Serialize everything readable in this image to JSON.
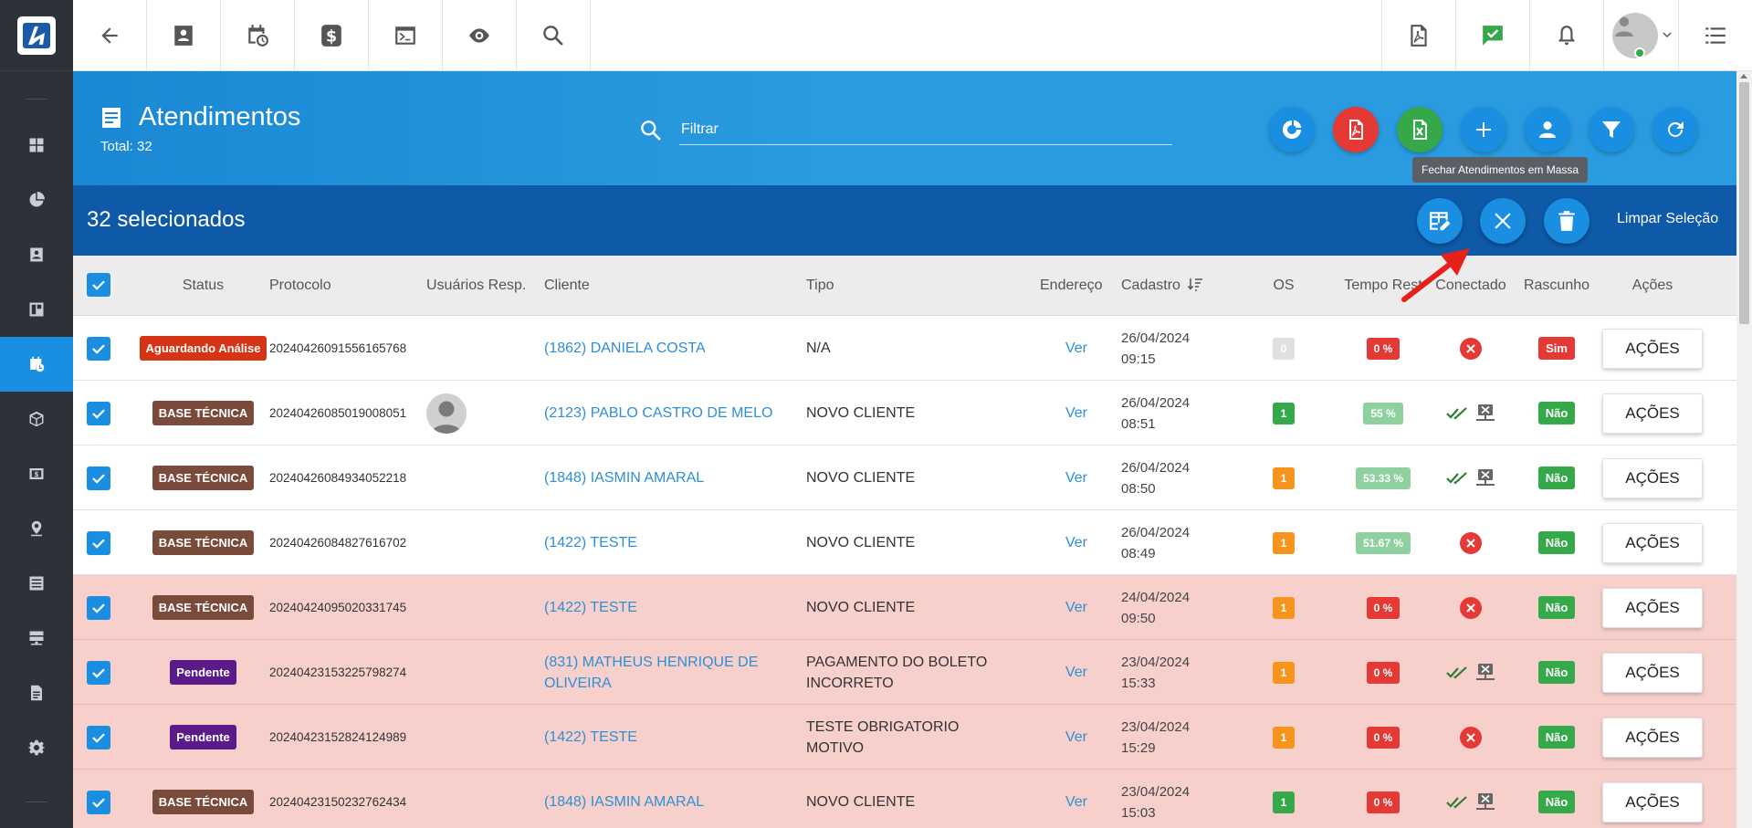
{
  "colors": {
    "primary": "#1a8ee0",
    "sidebar": "#2d3239",
    "selection_bar": "#0e5aa8",
    "row_highlight": "#f7d0cc",
    "status_aguardando": "#d63515",
    "status_base_tecnica": "#7a4a3a",
    "status_pendente": "#5a1a8a",
    "os_gray": "#e0e0e0",
    "os_green": "#35a84a",
    "os_orange": "#f7941d",
    "tempo_red": "#e53935",
    "tempo_green": "#8fd19e",
    "rasc_sim": "#e53935",
    "rasc_nao": "#35a84a"
  },
  "sidebar": {
    "items": [
      {
        "name": "dashboard",
        "icon": "grid-icon"
      },
      {
        "name": "charts",
        "icon": "pie-chart-icon"
      },
      {
        "name": "contacts",
        "icon": "contact-card-icon"
      },
      {
        "name": "panels",
        "icon": "panel-icon"
      },
      {
        "name": "atendimentos",
        "icon": "calendar-clock-icon",
        "active": true
      },
      {
        "name": "products",
        "icon": "box-icon"
      },
      {
        "name": "finance",
        "icon": "money-icon"
      },
      {
        "name": "map",
        "icon": "map-pin-icon"
      },
      {
        "name": "list",
        "icon": "list-icon"
      },
      {
        "name": "servers",
        "icon": "server-icon"
      },
      {
        "name": "documents",
        "icon": "document-icon"
      },
      {
        "name": "settings",
        "icon": "gear-icon"
      }
    ]
  },
  "topbar": {
    "left_icons": [
      "back-arrow-icon",
      "contact-card-icon",
      "calendar-clock-icon",
      "dollar-icon",
      "terminal-icon",
      "eye-icon",
      "search-icon"
    ],
    "right_icons": [
      "pdf-file-icon",
      "chat-check-icon",
      "bell-icon",
      "avatar",
      "menu-list-icon"
    ]
  },
  "header": {
    "title": "Atendimentos",
    "total": "Total: 32",
    "filter_placeholder": "Filtrar",
    "tooltip": "Fechar Atendimentos em Massa"
  },
  "selection": {
    "count_label": "32 selecionados",
    "clear_label": "Limpar Seleção"
  },
  "table": {
    "headers": {
      "status": "Status",
      "protocolo": "Protocolo",
      "usuarios": "Usuários Resp.",
      "cliente": "Cliente",
      "tipo": "Tipo",
      "endereco": "Endereço",
      "cadastro": "Cadastro",
      "os": "OS",
      "tempo": "Tempo Rest",
      "conectado": "Conectado",
      "rascunho": "Rascunho",
      "acoes": "Ações"
    },
    "rows": [
      {
        "status": "Aguardando Análise",
        "status_type": "aguardando",
        "protocolo": "20240426091556165768",
        "avatar": false,
        "cliente": "(1862) DANIELA COSTA",
        "tipo": "N/A",
        "endereco": "Ver",
        "cadastro_date": "26/04/2024",
        "cadastro_time": "09:15",
        "os": "0",
        "os_type": "gray",
        "tempo": "0 %",
        "tempo_type": "red",
        "conectado": "no",
        "rascunho": "Sim",
        "acoes": "AÇÕES",
        "highlight": false
      },
      {
        "status": "BASE TÉCNICA",
        "status_type": "base",
        "protocolo": "20240426085019008051",
        "avatar": true,
        "cliente": "(2123) PABLO CASTRO DE MELO",
        "tipo": "NOVO CLIENTE",
        "endereco": "Ver",
        "cadastro_date": "26/04/2024",
        "cadastro_time": "08:51",
        "os": "1",
        "os_type": "green",
        "tempo": "55 %",
        "tempo_type": "green",
        "conectado": "yes",
        "rascunho": "Não",
        "acoes": "AÇÕES",
        "highlight": false
      },
      {
        "status": "BASE TÉCNICA",
        "status_type": "base",
        "protocolo": "20240426084934052218",
        "avatar": false,
        "cliente": "(1848) IASMIN AMARAL",
        "tipo": "NOVO CLIENTE",
        "endereco": "Ver",
        "cadastro_date": "26/04/2024",
        "cadastro_time": "08:50",
        "os": "1",
        "os_type": "orange",
        "tempo": "53.33 %",
        "tempo_type": "green",
        "conectado": "yes",
        "rascunho": "Não",
        "acoes": "AÇÕES",
        "highlight": false
      },
      {
        "status": "BASE TÉCNICA",
        "status_type": "base",
        "protocolo": "20240426084827616702",
        "avatar": false,
        "cliente": "(1422) TESTE",
        "tipo": "NOVO CLIENTE",
        "endereco": "Ver",
        "cadastro_date": "26/04/2024",
        "cadastro_time": "08:49",
        "os": "1",
        "os_type": "orange",
        "tempo": "51.67 %",
        "tempo_type": "green",
        "conectado": "no",
        "rascunho": "Não",
        "acoes": "AÇÕES",
        "highlight": false
      },
      {
        "status": "BASE TÉCNICA",
        "status_type": "base",
        "protocolo": "20240424095020331745",
        "avatar": false,
        "cliente": "(1422) TESTE",
        "tipo": "NOVO CLIENTE",
        "endereco": "Ver",
        "cadastro_date": "24/04/2024",
        "cadastro_time": "09:50",
        "os": "1",
        "os_type": "orange",
        "tempo": "0 %",
        "tempo_type": "red",
        "conectado": "no",
        "rascunho": "Não",
        "acoes": "AÇÕES",
        "highlight": true
      },
      {
        "status": "Pendente",
        "status_type": "pendente",
        "protocolo": "20240423153225798274",
        "avatar": false,
        "cliente": "(831) MATHEUS HENRIQUE DE OLIVEIRA",
        "tipo": "PAGAMENTO DO BOLETO INCORRETO",
        "endereco": "Ver",
        "cadastro_date": "23/04/2024",
        "cadastro_time": "15:33",
        "os": "1",
        "os_type": "orange",
        "tempo": "0 %",
        "tempo_type": "red",
        "conectado": "yes",
        "rascunho": "Não",
        "acoes": "AÇÕES",
        "highlight": true
      },
      {
        "status": "Pendente",
        "status_type": "pendente",
        "protocolo": "20240423152824124989",
        "avatar": false,
        "cliente": "(1422) TESTE",
        "tipo": "TESTE OBRIGATORIO MOTIVO",
        "endereco": "Ver",
        "cadastro_date": "23/04/2024",
        "cadastro_time": "15:29",
        "os": "1",
        "os_type": "orange",
        "tempo": "0 %",
        "tempo_type": "red",
        "conectado": "no",
        "rascunho": "Não",
        "acoes": "AÇÕES",
        "highlight": true
      },
      {
        "status": "BASE TÉCNICA",
        "status_type": "base",
        "protocolo": "20240423150232762434",
        "avatar": false,
        "cliente": "(1848) IASMIN AMARAL",
        "tipo": "NOVO CLIENTE",
        "endereco": "Ver",
        "cadastro_date": "23/04/2024",
        "cadastro_time": "15:03",
        "os": "1",
        "os_type": "green",
        "tempo": "0 %",
        "tempo_type": "red",
        "conectado": "yes",
        "rascunho": "Não",
        "acoes": "AÇÕES",
        "highlight": true
      }
    ]
  }
}
